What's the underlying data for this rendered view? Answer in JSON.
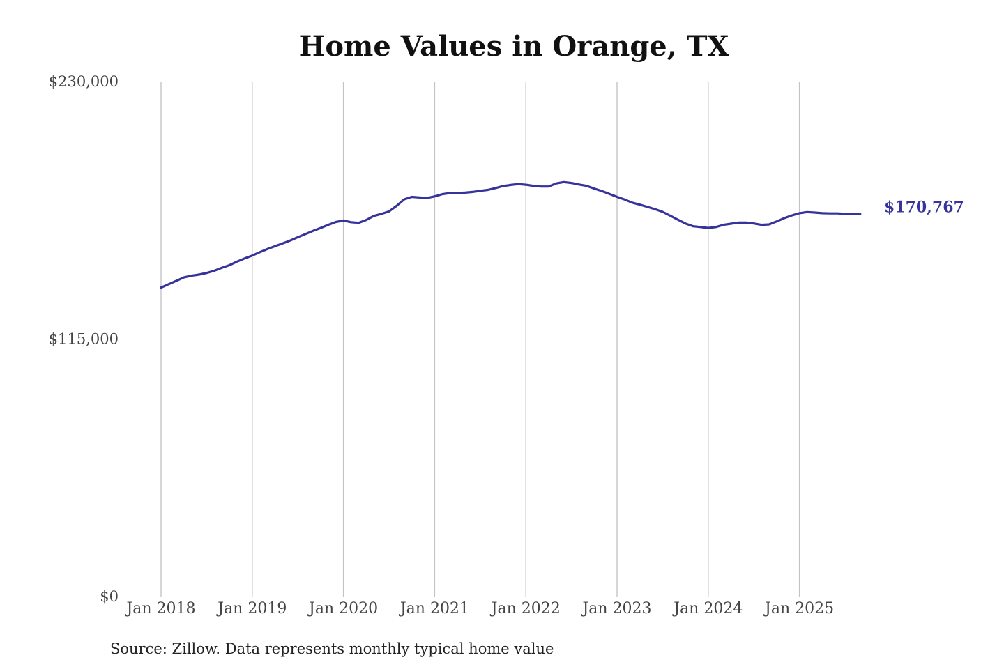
{
  "chart_data": {
    "type": "line",
    "title": "Home Values in Orange, TX",
    "xlabel": "",
    "ylabel": "",
    "source": "Source: Zillow. Data represents monthly typical home value",
    "ylim": [
      0,
      230000
    ],
    "y_ticks": [
      {
        "value": 0,
        "label": "$0"
      },
      {
        "value": 115000,
        "label": "$115,000"
      },
      {
        "value": 230000,
        "label": "$230,000"
      }
    ],
    "x_ticks": [
      {
        "value": "2018-01",
        "label": "Jan 2018"
      },
      {
        "value": "2019-01",
        "label": "Jan 2019"
      },
      {
        "value": "2020-01",
        "label": "Jan 2020"
      },
      {
        "value": "2021-01",
        "label": "Jan 2021"
      },
      {
        "value": "2022-01",
        "label": "Jan 2022"
      },
      {
        "value": "2023-01",
        "label": "Jan 2023"
      },
      {
        "value": "2024-01",
        "label": "Jan 2024"
      },
      {
        "value": "2025-01",
        "label": "Jan 2025"
      }
    ],
    "vertical_grid": true,
    "horizontal_grid": false,
    "legend": "none",
    "series_color": "#36339a",
    "end_label": "$170,767",
    "series": [
      {
        "x": [
          "2018-01",
          "2018-02",
          "2018-03",
          "2018-04",
          "2018-05",
          "2018-06",
          "2018-07",
          "2018-08",
          "2018-09",
          "2018-10",
          "2018-11",
          "2018-12",
          "2019-01",
          "2019-02",
          "2019-03",
          "2019-04",
          "2019-05",
          "2019-06",
          "2019-07",
          "2019-08",
          "2019-09",
          "2019-10",
          "2019-11",
          "2019-12",
          "2020-01",
          "2020-02",
          "2020-03",
          "2020-04",
          "2020-05",
          "2020-06",
          "2020-07",
          "2020-08",
          "2020-09",
          "2020-10",
          "2020-11",
          "2020-12",
          "2021-01",
          "2021-02",
          "2021-03",
          "2021-04",
          "2021-05",
          "2021-06",
          "2021-07",
          "2021-08",
          "2021-09",
          "2021-10",
          "2021-11",
          "2021-12",
          "2022-01",
          "2022-02",
          "2022-03",
          "2022-04",
          "2022-05",
          "2022-06",
          "2022-07",
          "2022-08",
          "2022-09",
          "2022-10",
          "2022-11",
          "2022-12",
          "2023-01",
          "2023-02",
          "2023-03",
          "2023-04",
          "2023-05",
          "2023-06",
          "2023-07",
          "2023-08",
          "2023-09",
          "2023-10",
          "2023-11",
          "2023-12",
          "2024-01",
          "2024-02",
          "2024-03",
          "2024-04",
          "2024-05",
          "2024-06",
          "2024-07",
          "2024-08",
          "2024-09",
          "2024-10",
          "2024-11",
          "2024-12",
          "2025-01",
          "2025-02",
          "2025-03",
          "2025-04",
          "2025-05",
          "2025-06",
          "2025-07",
          "2025-08",
          "2025-09"
        ],
        "values": [
          138000,
          139500,
          141000,
          142500,
          143300,
          143800,
          144500,
          145500,
          146800,
          148000,
          149600,
          151000,
          152300,
          153800,
          155200,
          156500,
          157700,
          159000,
          160500,
          161900,
          163300,
          164600,
          166000,
          167300,
          167900,
          167200,
          166900,
          168200,
          170000,
          170900,
          172000,
          174500,
          177400,
          178500,
          178200,
          178000,
          178700,
          179700,
          180200,
          180200,
          180400,
          180700,
          181200,
          181600,
          182400,
          183300,
          183800,
          184200,
          183900,
          183400,
          183100,
          183100,
          184500,
          185100,
          184700,
          184000,
          183400,
          182200,
          181100,
          179800,
          178500,
          177300,
          175900,
          175000,
          174000,
          173000,
          171800,
          170100,
          168300,
          166600,
          165400,
          165000,
          164600,
          165000,
          166000,
          166500,
          167000,
          167000,
          166600,
          166000,
          166200,
          167500,
          169000,
          170200,
          171200,
          171700,
          171500,
          171200,
          171100,
          171100,
          170900,
          170800,
          170767
        ]
      }
    ]
  }
}
